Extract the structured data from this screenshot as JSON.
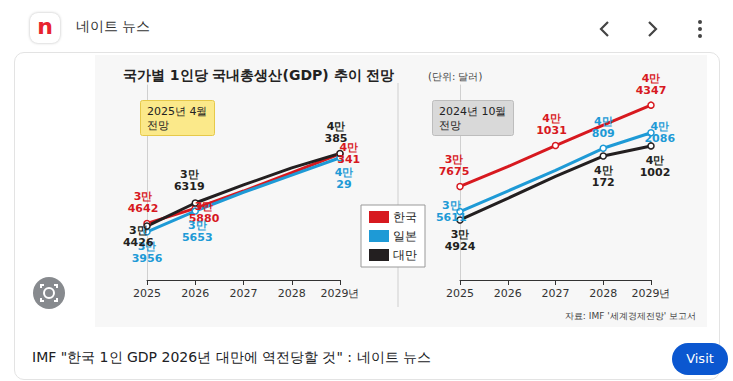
{
  "header": {
    "logo": "n",
    "site": "네이트 뉴스"
  },
  "figure": {
    "title": "국가별 1인당 국내총생산(GDP) 추이 전망",
    "unit": "(단위: 달러)",
    "source": "자료: IMF '세계경제전망' 보고서"
  },
  "chart_data": [
    {
      "type": "line",
      "subtitle": "2025년 4월\n전망",
      "categories": [
        "2025",
        "2026",
        "2027",
        "2028",
        "2029년"
      ],
      "ylim": [
        30000,
        46000
      ],
      "yticks": [],
      "tick_labels": "x",
      "grid": false,
      "legend": "lower right",
      "series": [
        {
          "name": "한국",
          "color": "#d7191f",
          "marker": "circle",
          "line_style": "solid",
          "values": [
            34642,
            35880,
            37300,
            38800,
            40341
          ],
          "value_labels": [
            "3만\n4642",
            "3만\n5880",
            null,
            null,
            "4만\n341"
          ]
        },
        {
          "name": "일본",
          "color": "#1e9ad6",
          "marker": "circle",
          "line_style": "solid",
          "values": [
            33956,
            35653,
            37200,
            38600,
            40029
          ],
          "value_labels": [
            "3만\n3956",
            "3만\n5653",
            null,
            null,
            "4만\n29"
          ]
        },
        {
          "name": "대만",
          "color": "#231f20",
          "marker": "circle",
          "line_style": "solid",
          "values": [
            34426,
            36319,
            37800,
            39200,
            40385
          ],
          "value_labels": [
            "3만\n4426",
            "3만\n6319",
            null,
            null,
            "4만\n385"
          ]
        }
      ]
    },
    {
      "type": "line",
      "subtitle": "2024년 10월\n전망",
      "categories": [
        "2025",
        "2026",
        "2027",
        "2028",
        "2029년"
      ],
      "ylim": [
        30000,
        46000
      ],
      "yticks": [],
      "tick_labels": "x",
      "grid": false,
      "series": [
        {
          "name": "한국",
          "color": "#d7191f",
          "marker": "circle",
          "line_style": "solid",
          "values": [
            37675,
            39300,
            41031,
            42700,
            44347
          ],
          "value_labels": [
            "3만\n7675",
            null,
            "4만\n1031",
            null,
            "4만\n4347"
          ]
        },
        {
          "name": "일본",
          "color": "#1e9ad6",
          "marker": "circle",
          "line_style": "solid",
          "values": [
            35611,
            37300,
            39000,
            40809,
            42086
          ],
          "value_labels": [
            "3만\n5611",
            null,
            null,
            "4만\n809",
            "4만\n2086"
          ]
        },
        {
          "name": "대만",
          "color": "#231f20",
          "marker": "circle",
          "line_style": "solid",
          "values": [
            34924,
            36700,
            38500,
            40172,
            41002
          ],
          "value_labels": [
            "3만\n4924",
            null,
            null,
            "4만\n172",
            "4만\n1002"
          ]
        }
      ]
    }
  ],
  "caption": {
    "text": "IMF \"한국 1인 GDP 2026년 대만에 역전당할 것\" : 네이트 뉴스",
    "button": "Visit"
  }
}
